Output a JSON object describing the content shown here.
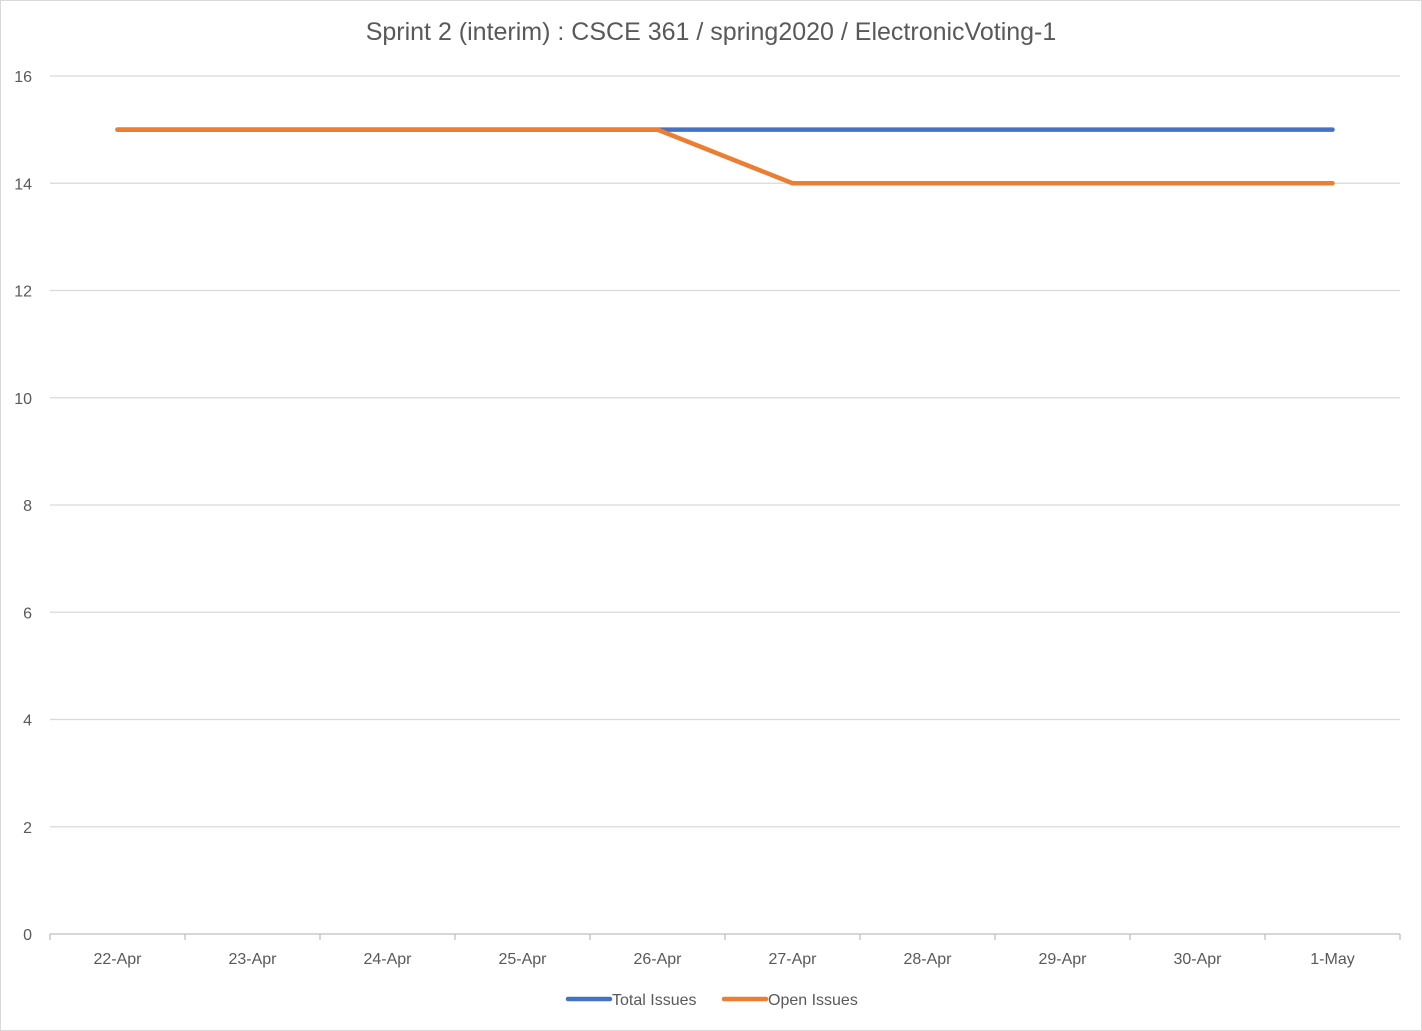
{
  "chart_data": {
    "type": "line",
    "title": "Sprint 2 (interim) : CSCE 361 / spring2020 / ElectronicVoting-1",
    "xlabel": "",
    "ylabel": "",
    "categories": [
      "22-Apr",
      "23-Apr",
      "24-Apr",
      "25-Apr",
      "26-Apr",
      "27-Apr",
      "28-Apr",
      "29-Apr",
      "30-Apr",
      "1-May"
    ],
    "ylim": [
      0,
      16
    ],
    "yticks": [
      0,
      2,
      4,
      6,
      8,
      10,
      12,
      14,
      16
    ],
    "grid": true,
    "legend_position": "bottom",
    "series": [
      {
        "name": "Total Issues",
        "color": "#4472c4",
        "values": [
          15,
          15,
          15,
          15,
          15,
          15,
          15,
          15,
          15,
          15
        ]
      },
      {
        "name": "Open Issues",
        "color": "#ed7d31",
        "values": [
          15,
          15,
          15,
          15,
          15,
          14,
          14,
          14,
          14,
          14
        ]
      }
    ]
  }
}
